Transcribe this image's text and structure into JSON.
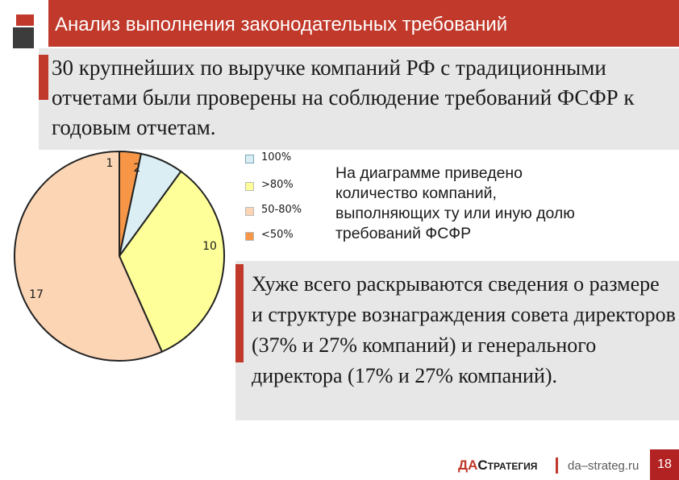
{
  "header": {
    "title": "Анализ выполнения законодательных требований"
  },
  "intro": {
    "text": "30 крупнейших по выручке компаний РФ с традиционными отчетами были проверены на соблюдение требований ФСФР к годовым отчетам."
  },
  "chart_data": {
    "type": "pie",
    "categories": [
      "100%",
      ">80%",
      "50-80%",
      "<50%"
    ],
    "values": [
      2,
      10,
      17,
      1
    ],
    "value_labels": [
      "2",
      "10",
      "17",
      "1"
    ],
    "colors": [
      "#daeef3",
      "#ffff99",
      "#fcd5b4",
      "#f79646"
    ],
    "start_slice": 3,
    "stroke": "#222222",
    "legend_position": "right",
    "grid": false
  },
  "note": {
    "text": "На диаграмме приведено количество компаний, выполняющих ту или иную долю требований ФСФР"
  },
  "finding": {
    "text": "Хуже всего раскрываются сведения о размере и структуре вознаграждения совета директоров (37% и 27% компаний)  и генерального директора (17% и 27% компаний)."
  },
  "footer": {
    "logo_prefix": "ДА",
    "logo_rest": "Стратегия",
    "site": "da–strateg.ru",
    "page_number": "18",
    "accent_color": "#c0392b"
  }
}
